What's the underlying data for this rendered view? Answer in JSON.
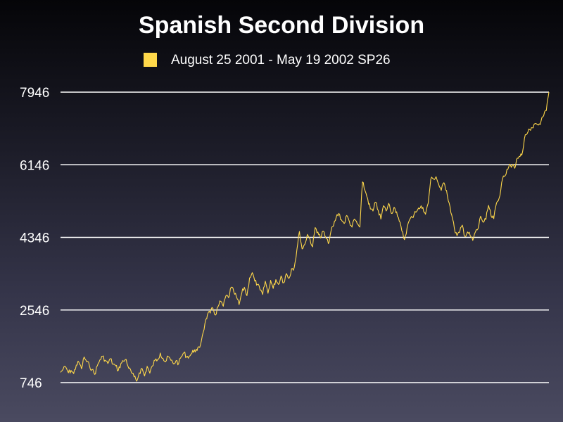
{
  "chart_data": {
    "type": "line",
    "title": "Spanish Second Division",
    "xlabel": "",
    "ylabel": "",
    "legend_placement": "top-center",
    "grid": true,
    "ylim": [
      746,
      7946
    ],
    "yticks": [
      746,
      2546,
      4346,
      6146,
      7946
    ],
    "series": [
      {
        "name": "August 25 2001  - May 19 2002 SP26",
        "color": "#ffd84a",
        "values": [
          1000,
          1080,
          1130,
          990,
          1050,
          970,
          1180,
          1250,
          1090,
          1380,
          1260,
          1170,
          1070,
          950,
          1160,
          1310,
          1400,
          1300,
          1220,
          1340,
          1200,
          1160,
          1050,
          1220,
          1280,
          1320,
          1100,
          1000,
          890,
          780,
          990,
          1100,
          910,
          1150,
          980,
          1160,
          1300,
          1320,
          1480,
          1350,
          1260,
          1390,
          1300,
          1210,
          1290,
          1220,
          1390,
          1490,
          1390,
          1400,
          1470,
          1560,
          1540,
          1620,
          1910,
          2210,
          2440,
          2470,
          2590,
          2420,
          2630,
          2760,
          2640,
          2900,
          2850,
          3110,
          2990,
          2870,
          2680,
          2960,
          3110,
          2900,
          3340,
          3470,
          3260,
          3180,
          3040,
          2930,
          3260,
          2960,
          3280,
          3080,
          3300,
          3180,
          3390,
          3220,
          3450,
          3330,
          3570,
          3600,
          4030,
          4490,
          4060,
          4170,
          4420,
          4300,
          4110,
          4590,
          4480,
          4330,
          4500,
          4340,
          4190,
          4500,
          4640,
          4850,
          4940,
          4780,
          4690,
          4890,
          4740,
          4600,
          4800,
          4680,
          4600,
          5720,
          5500,
          5300,
          5050,
          5000,
          5220,
          5010,
          4800,
          5130,
          5000,
          5190,
          4940,
          5090,
          4980,
          4750,
          4500,
          4290,
          4590,
          4790,
          4840,
          4990,
          5030,
          5080,
          5090,
          4920,
          5190,
          5790,
          5800,
          5850,
          5660,
          5510,
          5700,
          5510,
          5200,
          4900,
          4560,
          4390,
          4470,
          4650,
          4370,
          4480,
          4390,
          4270,
          4480,
          4560,
          4870,
          4720,
          4790,
          5140,
          4870,
          4810,
          5190,
          5310,
          5700,
          5860,
          6030,
          6160,
          6120,
          6060,
          6310,
          6350,
          6480,
          6890,
          6960,
          7000,
          7060,
          7170,
          7130,
          7230,
          7360,
          7490,
          7946
        ]
      }
    ]
  }
}
